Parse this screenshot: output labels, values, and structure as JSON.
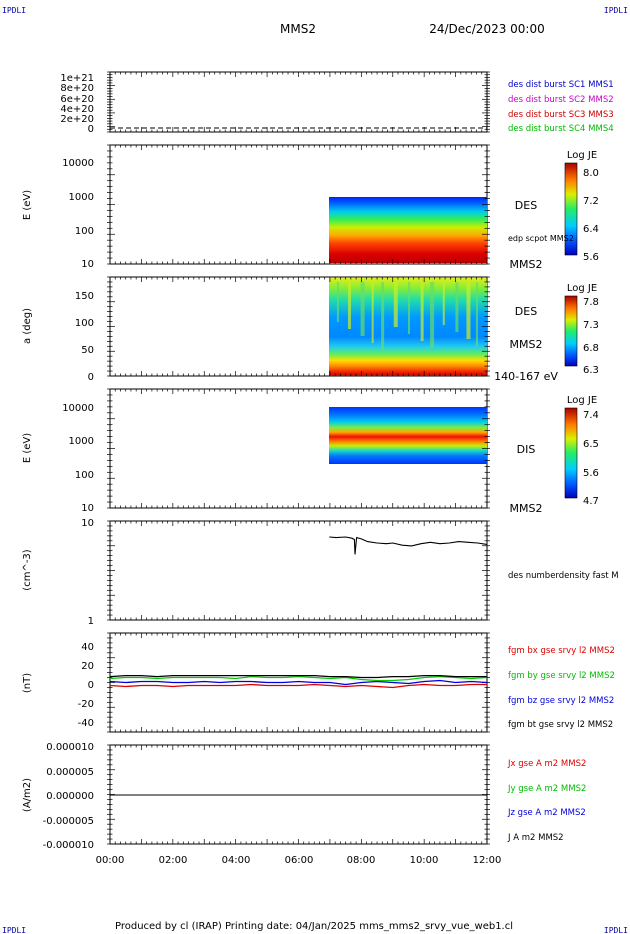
{
  "header": {
    "corner_tl": "IPDLI",
    "corner_tr": "IPDLI",
    "corner_bl": "IPDLI",
    "corner_br": "IPDLI",
    "title": "MMS2",
    "datetime": "24/Dec/2023 00:00"
  },
  "footer": {
    "text": "Produced by cl (IRAP)   Printing date: 04/Jan/2025   mms_mms2_srvy_vue_web1.cl"
  },
  "colors": {
    "mms1": "#0000cc",
    "mms2": "#cc00cc",
    "mms3": "#cc0000",
    "mms4": "#00bb00",
    "bx": "#dd0000",
    "by": "#00cc00",
    "bz": "#0000dd",
    "bt": "#000000"
  },
  "chart_data": [
    {
      "type": "line",
      "id": "dist-burst",
      "ylabel": "",
      "yticks": [
        "1e+21",
        "8e+20",
        "6e+20",
        "4e+20",
        "2e+20",
        "0"
      ],
      "ylim": [
        0,
        1.1e+21
      ],
      "legend": [
        "des dist burst SC1 MMS1",
        "des dist burst SC2 MMS2",
        "des dist burst SC3 MMS3",
        "des dist burst SC4 MMS4"
      ],
      "series": [
        {
          "values": [
            0,
            0
          ]
        }
      ]
    },
    {
      "type": "heatmap",
      "id": "des-energy",
      "ylabel": "E (eV)",
      "yticks": [
        "10000",
        "1000",
        "100",
        "10"
      ],
      "yscale": "log",
      "ylim": [
        10,
        15000
      ],
      "data_range_hours": [
        6.98,
        12.0
      ],
      "data_energy_range_eV": [
        10,
        1000
      ],
      "right_labels": [
        "DES",
        "edp scpot MMS2",
        "MMS2"
      ],
      "colorbar": {
        "title": "Log JE",
        "ticks": [
          "8.0",
          "7.2",
          "6.4",
          "5.6"
        ],
        "range": [
          5.6,
          8.0
        ]
      }
    },
    {
      "type": "heatmap",
      "id": "des-pitch",
      "ylabel": "a (deg)",
      "yticks": [
        "150",
        "100",
        "50",
        "0"
      ],
      "ylim": [
        0,
        185
      ],
      "data_range_hours": [
        6.98,
        12.0
      ],
      "right_labels": [
        "DES",
        "MMS2",
        "140-167 eV"
      ],
      "colorbar": {
        "title": "Log JE",
        "ticks": [
          "7.8",
          "7.3",
          "6.8",
          "6.3"
        ],
        "range": [
          6.3,
          7.8
        ]
      }
    },
    {
      "type": "heatmap",
      "id": "dis-energy",
      "ylabel": "E (eV)",
      "yticks": [
        "10000",
        "1000",
        "100",
        "10"
      ],
      "yscale": "log",
      "ylim": [
        10,
        15000
      ],
      "data_range_hours": [
        6.98,
        12.0
      ],
      "data_energy_range_eV": [
        200,
        10000
      ],
      "right_labels": [
        "DIS",
        "MMS2"
      ],
      "colorbar": {
        "title": "Log JE",
        "ticks": [
          "7.4",
          "6.5",
          "5.6",
          "4.7"
        ],
        "range": [
          4.7,
          7.4
        ]
      }
    },
    {
      "type": "line",
      "id": "density",
      "ylabel": "(cm^-3)",
      "yticks": [
        "10",
        "1"
      ],
      "yscale": "log",
      "ylim": [
        1,
        10
      ],
      "legend": [
        "des numberdensity fast M"
      ],
      "series": [
        {
          "x": [
            6.98,
            7.2,
            7.5,
            7.7,
            7.78,
            7.8,
            7.85,
            8.0,
            8.2,
            8.5,
            8.8,
            9.0,
            9.3,
            9.6,
            9.9,
            10.2,
            10.5,
            10.8,
            11.1,
            11.4,
            11.7,
            12.0
          ],
          "values": [
            6.9,
            6.8,
            6.9,
            6.7,
            6.5,
            4.6,
            6.8,
            6.6,
            6.2,
            6.0,
            5.9,
            6.0,
            5.7,
            5.6,
            5.9,
            6.1,
            5.9,
            6.0,
            6.2,
            6.1,
            6.0,
            5.8
          ]
        }
      ]
    },
    {
      "type": "line",
      "id": "fgm",
      "ylabel": "(nT)",
      "yticks": [
        "40",
        "20",
        "0",
        "-20",
        "-40"
      ],
      "ylim": [
        -50,
        50
      ],
      "legend": [
        "fgm bx gse srvy l2 MMS2",
        "fgm by gse srvy l2 MMS2",
        "fgm bz gse srvy l2 MMS2",
        "fgm bt gse srvy l2 MMS2"
      ],
      "x": [
        0,
        0.5,
        1,
        1.5,
        2,
        2.5,
        3,
        3.5,
        4,
        4.5,
        5,
        5.5,
        6,
        6.5,
        7,
        7.5,
        8,
        8.5,
        9,
        9.5,
        10,
        10.5,
        11,
        11.5,
        12
      ],
      "series": [
        {
          "values": [
            -3,
            -4,
            -3,
            -3,
            -4,
            -3,
            -3,
            -3,
            -3,
            -2,
            -3,
            -3,
            -3,
            -2,
            -3,
            -4,
            -3,
            -4,
            -5,
            -3,
            -2,
            -3,
            -3,
            -2,
            -2
          ]
        },
        {
          "values": [
            4,
            5,
            5,
            4,
            5,
            5,
            5,
            5,
            4,
            6,
            5,
            5,
            6,
            5,
            4,
            5,
            3,
            2,
            2,
            3,
            5,
            6,
            5,
            4,
            5
          ]
        },
        {
          "values": [
            1,
            0,
            1,
            1,
            0,
            0,
            1,
            0,
            1,
            1,
            0,
            0,
            1,
            0,
            0,
            -2,
            0,
            1,
            0,
            -1,
            1,
            2,
            0,
            1,
            0
          ]
        },
        {
          "values": [
            6,
            7,
            7,
            6,
            7,
            7,
            7,
            7,
            7,
            7,
            7,
            7,
            7,
            7,
            6,
            6,
            5,
            5,
            6,
            6,
            7,
            7,
            6,
            6,
            6
          ]
        }
      ]
    },
    {
      "type": "line",
      "id": "current",
      "ylabel": "(A/m2)",
      "yticks": [
        "0.000010",
        "0.000005",
        "0.000000",
        "-0.000005",
        "-0.000010"
      ],
      "ylim": [
        -1e-05,
        1e-05
      ],
      "legend": [
        "Jx gse A m2 MMS2",
        "Jy gse A m2 MMS2",
        "Jz gse A m2 MMS2",
        "J A m2 MMS2"
      ],
      "series": [
        {
          "values": [
            0,
            0
          ]
        }
      ]
    }
  ],
  "xaxis": {
    "ticks": [
      "00:00",
      "02:00",
      "04:00",
      "06:00",
      "08:00",
      "10:00",
      "12:00"
    ],
    "range_hours": [
      0,
      12
    ]
  }
}
